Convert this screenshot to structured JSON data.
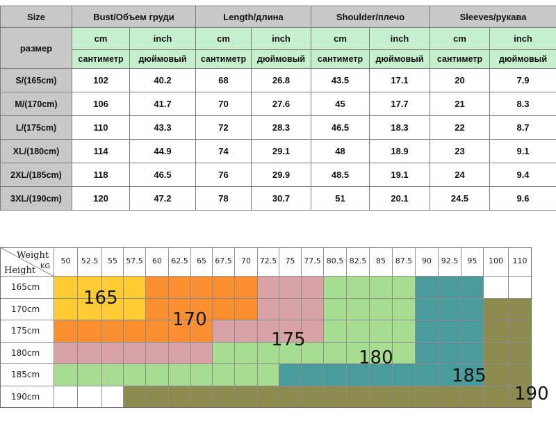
{
  "size_table": {
    "size_label": "Size",
    "size_label_ru": "размер",
    "columns": [
      {
        "title": "Bust/Объем груди"
      },
      {
        "title": "Length/длина"
      },
      {
        "title": "Shoulder/плечо"
      },
      {
        "title": "Sleeves/рукава"
      }
    ],
    "unit_cm": "cm",
    "unit_inch": "inch",
    "unit_cm_ru": "сантиметр",
    "unit_inch_ru": "дюймовый",
    "rows": [
      {
        "size": "S/(165cm)",
        "values": [
          "102",
          "40.2",
          "68",
          "26.8",
          "43.5",
          "17.1",
          "20",
          "7.9"
        ]
      },
      {
        "size": "M/(170cm)",
        "values": [
          "106",
          "41.7",
          "70",
          "27.6",
          "45",
          "17.7",
          "21",
          "8.3"
        ]
      },
      {
        "size": "L/(175cm)",
        "values": [
          "110",
          "43.3",
          "72",
          "28.3",
          "46.5",
          "18.3",
          "22",
          "8.7"
        ]
      },
      {
        "size": "XL/(180cm)",
        "values": [
          "114",
          "44.9",
          "74",
          "29.1",
          "48",
          "18.9",
          "23",
          "9.1"
        ]
      },
      {
        "size": "2XL/(185cm)",
        "values": [
          "118",
          "46.5",
          "76",
          "29.9",
          "48.5",
          "19.1",
          "24",
          "9.4"
        ]
      },
      {
        "size": "3XL/(190cm)",
        "values": [
          "120",
          "47.2",
          "78",
          "30.7",
          "51",
          "20.1",
          "24.5",
          "9.6"
        ]
      }
    ]
  },
  "chart": {
    "weight_label": "Weight",
    "kg_label": "KG",
    "height_label": "Height",
    "weights": [
      "50",
      "52.5",
      "55",
      "57.5",
      "60",
      "62.5",
      "65",
      "67.5",
      "70",
      "72.5",
      "75",
      "77.5",
      "80.5",
      "82.5",
      "85",
      "87.5",
      "90",
      "92.5",
      "95",
      "100",
      "110"
    ],
    "heights": [
      "165cm",
      "170cm",
      "175cm",
      "180cm",
      "185cm",
      "190cm"
    ],
    "colors": {
      "165": "#ffcc33",
      "170": "#fb8f31",
      "175": "#d9a3a6",
      "180": "#a6dd91",
      "185": "#4a9b9b",
      "190": "#8c8c50",
      "blank": "#ffffff"
    },
    "grid": [
      [
        "165",
        "165",
        "165",
        "165",
        "170",
        "170",
        "170",
        "170",
        "170",
        "175",
        "175",
        "175",
        "180",
        "180",
        "180",
        "180",
        "185",
        "185",
        "185",
        "blank",
        "blank"
      ],
      [
        "165",
        "165",
        "165",
        "165",
        "170",
        "170",
        "170",
        "170",
        "170",
        "175",
        "175",
        "175",
        "180",
        "180",
        "180",
        "180",
        "185",
        "185",
        "185",
        "190",
        "190"
      ],
      [
        "170",
        "170",
        "170",
        "170",
        "170",
        "170",
        "170",
        "175",
        "175",
        "175",
        "175",
        "175",
        "180",
        "180",
        "180",
        "180",
        "185",
        "185",
        "185",
        "190",
        "190"
      ],
      [
        "175",
        "175",
        "175",
        "175",
        "175",
        "175",
        "175",
        "180",
        "180",
        "180",
        "180",
        "180",
        "180",
        "180",
        "180",
        "180",
        "185",
        "185",
        "185",
        "190",
        "190"
      ],
      [
        "180",
        "180",
        "180",
        "180",
        "180",
        "180",
        "180",
        "180",
        "180",
        "180",
        "185",
        "185",
        "185",
        "185",
        "185",
        "185",
        "185",
        "185",
        "185",
        "190",
        "190"
      ],
      [
        "blank",
        "blank",
        "blank",
        "190",
        "190",
        "190",
        "190",
        "190",
        "190",
        "190",
        "190",
        "190",
        "190",
        "190",
        "190",
        "190",
        "190",
        "190",
        "190",
        "190",
        "190"
      ]
    ],
    "zones": [
      {
        "label": "165"
      },
      {
        "label": "170"
      },
      {
        "label": "175"
      },
      {
        "label": "180"
      },
      {
        "label": "185"
      },
      {
        "label": "190"
      }
    ]
  }
}
